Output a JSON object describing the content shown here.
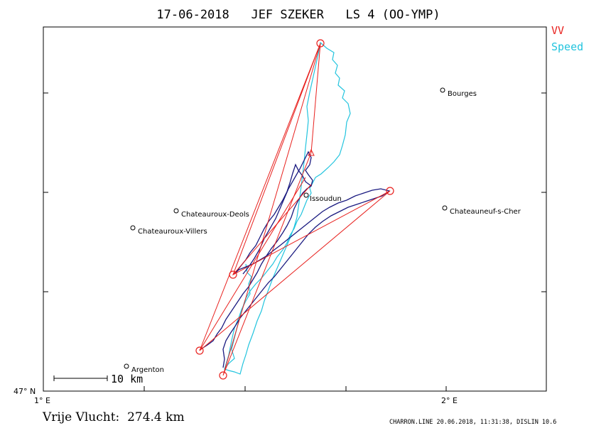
{
  "title": "17-06-2018   JEF SZEKER   LS 4 (OO-YMP)",
  "legend": [
    {
      "label": "VV",
      "color": "#e8211e"
    },
    {
      "label": "Speed",
      "color": "#22c4de"
    }
  ],
  "axis": {
    "lat_label": "47° N",
    "lon_labels": [
      "1° E",
      "2° E"
    ]
  },
  "scale_bar": {
    "label": "10 km"
  },
  "places": [
    {
      "name": "Bourges"
    },
    {
      "name": "Issoudun"
    },
    {
      "name": "Chateauroux-Deols"
    },
    {
      "name": "Chateauneuf-s-Cher"
    },
    {
      "name": "Chateauroux-Villers"
    },
    {
      "name": "Argenton"
    }
  ],
  "distance": "Vrije Vlucht:  274.4 km",
  "footer": "CHARRON.LINE 20.06.2018, 11:31:38, DISLIN 10.6",
  "colors": {
    "frame": "#000000",
    "course": "#e8211e",
    "track_speed": "#22c4de",
    "track_vario": "#1a1a80"
  },
  "icons": {
    "place_marker": "open-circle",
    "turnpoint_marker": "red-circle",
    "start_marker": "red-triangle"
  }
}
